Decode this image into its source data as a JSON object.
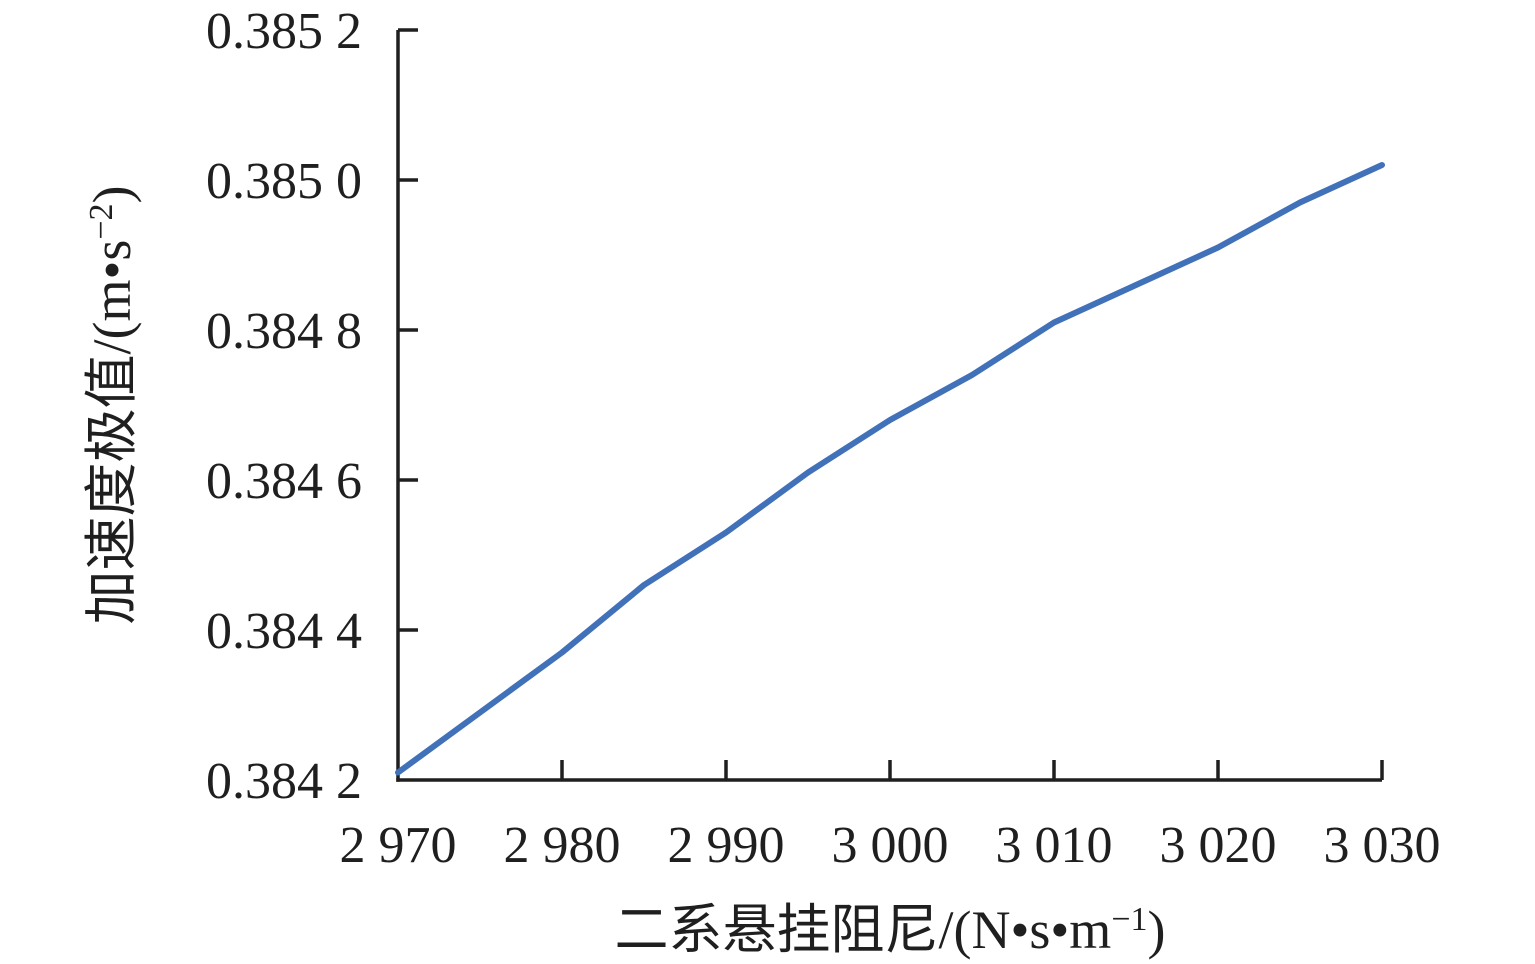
{
  "chart_data": {
    "type": "line",
    "title": "",
    "xlabel": {
      "text": "二系悬挂阻尼/(N•s•m−1)",
      "prefix": "二系悬挂阻尼/(N•s•m",
      "sup": "−1",
      "suffix": ")"
    },
    "ylabel": {
      "text": "加速度极值/(m•s−2)",
      "prefix": "加速度极值/(m•s",
      "sup": "−2",
      "suffix": ")"
    },
    "x": [
      2970,
      2975,
      2980,
      2985,
      2990,
      2995,
      3000,
      3005,
      3010,
      3015,
      3020,
      3025,
      3030
    ],
    "y": [
      0.38421,
      0.38429,
      0.38437,
      0.38446,
      0.38453,
      0.38461,
      0.38468,
      0.38474,
      0.38481,
      0.38486,
      0.38491,
      0.38497,
      0.38502
    ],
    "xlim": [
      2970,
      3030
    ],
    "ylim": [
      0.3842,
      0.3852
    ],
    "x_ticks": [
      {
        "value": 2970,
        "label": "2 970"
      },
      {
        "value": 2980,
        "label": "2 980"
      },
      {
        "value": 2990,
        "label": "2 990"
      },
      {
        "value": 3000,
        "label": "3 000"
      },
      {
        "value": 3010,
        "label": "3 010"
      },
      {
        "value": 3020,
        "label": "3 020"
      },
      {
        "value": 3030,
        "label": "3 030"
      }
    ],
    "y_ticks": [
      {
        "value": 0.3852,
        "label": "0.385 2"
      },
      {
        "value": 0.385,
        "label": "0.385 0"
      },
      {
        "value": 0.3848,
        "label": "0.384 8"
      },
      {
        "value": 0.3846,
        "label": "0.384 6"
      },
      {
        "value": 0.3844,
        "label": "0.384 4"
      },
      {
        "value": 0.3842,
        "label": "0.384 2"
      }
    ],
    "grid": false,
    "legend": "none",
    "line_color": "#4171B8",
    "axis_color": "#1f1f1f",
    "text_color": "#1f1f1f"
  }
}
